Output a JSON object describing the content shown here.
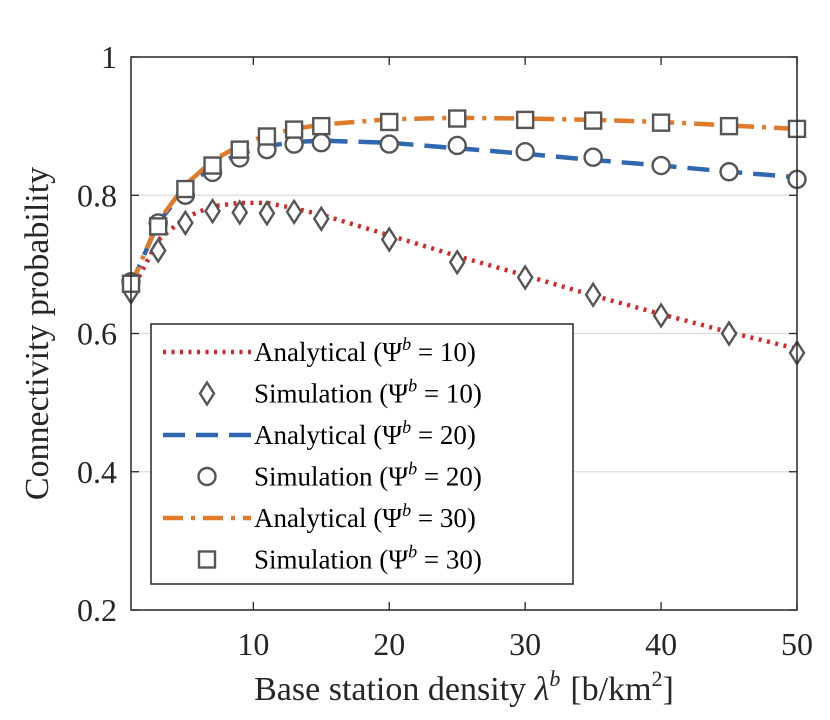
{
  "chart_data": {
    "type": "line",
    "title": "",
    "xlabel": "Base station density λᵇ [b/km²]",
    "xlabel_parts": {
      "main": "Base station density ",
      "lambda": "λ",
      "sup": "b",
      "bracket": "[b/km",
      "sq": "2",
      "close": "]"
    },
    "ylabel": "Connectivity probability",
    "xlim": [
      1,
      50
    ],
    "ylim": [
      0.2,
      1
    ],
    "xticks": [
      10,
      20,
      30,
      40,
      50
    ],
    "yticks": [
      0.2,
      0.4,
      0.6,
      0.8,
      1
    ],
    "ytick_labels": [
      "0.2",
      "0.4",
      "0.6",
      "0.8",
      "1"
    ],
    "grid": "horizontal",
    "legend_position": "lower-left",
    "colors": {
      "psi10": "#d62728",
      "psi20": "#2f67b1",
      "psi30": "#e07b2a",
      "marker": "#555555",
      "axis": "#262626",
      "grid": "#dcdcdc"
    },
    "series": [
      {
        "name": "Analytical (Ψb = 10)",
        "label_prefix": "Analytical (Ψ",
        "label_sup": "b",
        "label_suffix": " = 10)",
        "kind": "line",
        "style": "dotted",
        "color": "#d62728",
        "x": [
          1,
          3,
          5,
          7,
          9,
          11,
          13,
          15,
          20,
          25,
          30,
          35,
          40,
          45,
          50
        ],
        "y": [
          0.66,
          0.735,
          0.768,
          0.784,
          0.789,
          0.789,
          0.781,
          0.772,
          0.742,
          0.712,
          0.684,
          0.655,
          0.628,
          0.602,
          0.578
        ]
      },
      {
        "name": "Simulation (Ψb = 10)",
        "label_prefix": "Simulation (Ψ",
        "label_sup": "b",
        "label_suffix": " = 10)",
        "kind": "marker",
        "marker": "diamond",
        "color": "#555555",
        "x": [
          1,
          3,
          5,
          7,
          9,
          11,
          13,
          15,
          20,
          25,
          30,
          35,
          40,
          45,
          50
        ],
        "y": [
          0.66,
          0.72,
          0.76,
          0.777,
          0.775,
          0.774,
          0.776,
          0.766,
          0.736,
          0.703,
          0.681,
          0.656,
          0.626,
          0.6,
          0.572
        ]
      },
      {
        "name": "Analytical (Ψb = 20)",
        "label_prefix": "Analytical (Ψ",
        "label_sup": "b",
        "label_suffix": " = 20)",
        "kind": "line",
        "style": "dashed",
        "color": "#2f67b1",
        "x": [
          1,
          3,
          5,
          7,
          9,
          11,
          13,
          15,
          20,
          25,
          30,
          35,
          40,
          45,
          50
        ],
        "y": [
          0.67,
          0.76,
          0.81,
          0.842,
          0.86,
          0.871,
          0.877,
          0.879,
          0.876,
          0.868,
          0.86,
          0.851,
          0.843,
          0.834,
          0.826
        ]
      },
      {
        "name": "Simulation (Ψb = 20)",
        "label_prefix": "Simulation (Ψ",
        "label_sup": "b",
        "label_suffix": " = 20)",
        "kind": "marker",
        "marker": "circle",
        "color": "#555555",
        "x": [
          1,
          3,
          5,
          7,
          9,
          11,
          13,
          15,
          20,
          25,
          30,
          35,
          40,
          45,
          50
        ],
        "y": [
          0.675,
          0.76,
          0.8,
          0.833,
          0.854,
          0.866,
          0.874,
          0.876,
          0.874,
          0.872,
          0.863,
          0.855,
          0.843,
          0.834,
          0.823
        ]
      },
      {
        "name": "Analytical (Ψb = 30)",
        "label_prefix": "Analytical (Ψ",
        "label_sup": "b",
        "label_suffix": " = 30)",
        "kind": "line",
        "style": "dashdot",
        "color": "#e07b2a",
        "x": [
          1,
          3,
          5,
          7,
          9,
          11,
          13,
          15,
          20,
          25,
          30,
          35,
          40,
          45,
          50
        ],
        "y": [
          0.67,
          0.762,
          0.815,
          0.85,
          0.872,
          0.887,
          0.896,
          0.902,
          0.91,
          0.912,
          0.911,
          0.909,
          0.906,
          0.901,
          0.896
        ]
      },
      {
        "name": "Simulation (Ψb = 30)",
        "label_prefix": "Simulation (Ψ",
        "label_sup": "b",
        "label_suffix": " = 30)",
        "kind": "marker",
        "marker": "square",
        "color": "#555555",
        "x": [
          1,
          3,
          5,
          7,
          9,
          11,
          13,
          15,
          20,
          25,
          30,
          35,
          40,
          45,
          50
        ],
        "y": [
          0.672,
          0.755,
          0.809,
          0.843,
          0.866,
          0.885,
          0.895,
          0.9,
          0.906,
          0.911,
          0.909,
          0.908,
          0.905,
          0.9,
          0.896
        ]
      }
    ]
  }
}
